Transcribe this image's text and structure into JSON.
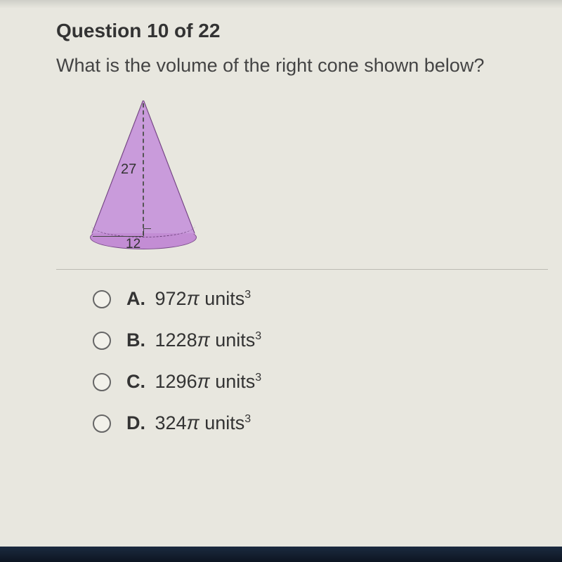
{
  "question": {
    "title": "Question 10 of 22",
    "text": "What is the volume of the right cone shown below?"
  },
  "diagram": {
    "type": "cone",
    "height_label": "27",
    "radius_label": "12",
    "fill_color": "#c99bdb",
    "outline_color": "#6a3f7a",
    "label_fontsize": 20
  },
  "choices": [
    {
      "letter": "A.",
      "value": "972",
      "symbol": "π",
      "unit": "units",
      "power": "3"
    },
    {
      "letter": "B.",
      "value": "1228",
      "symbol": "π",
      "unit": "units",
      "power": "3"
    },
    {
      "letter": "C.",
      "value": "1296",
      "symbol": "π",
      "unit": "units",
      "power": "3"
    },
    {
      "letter": "D.",
      "value": "324",
      "symbol": "π",
      "unit": "units",
      "power": "3"
    }
  ],
  "colors": {
    "background": "#e8e7df",
    "text": "#333333",
    "divider": "#bcbcb4",
    "radio_border": "#666666"
  }
}
